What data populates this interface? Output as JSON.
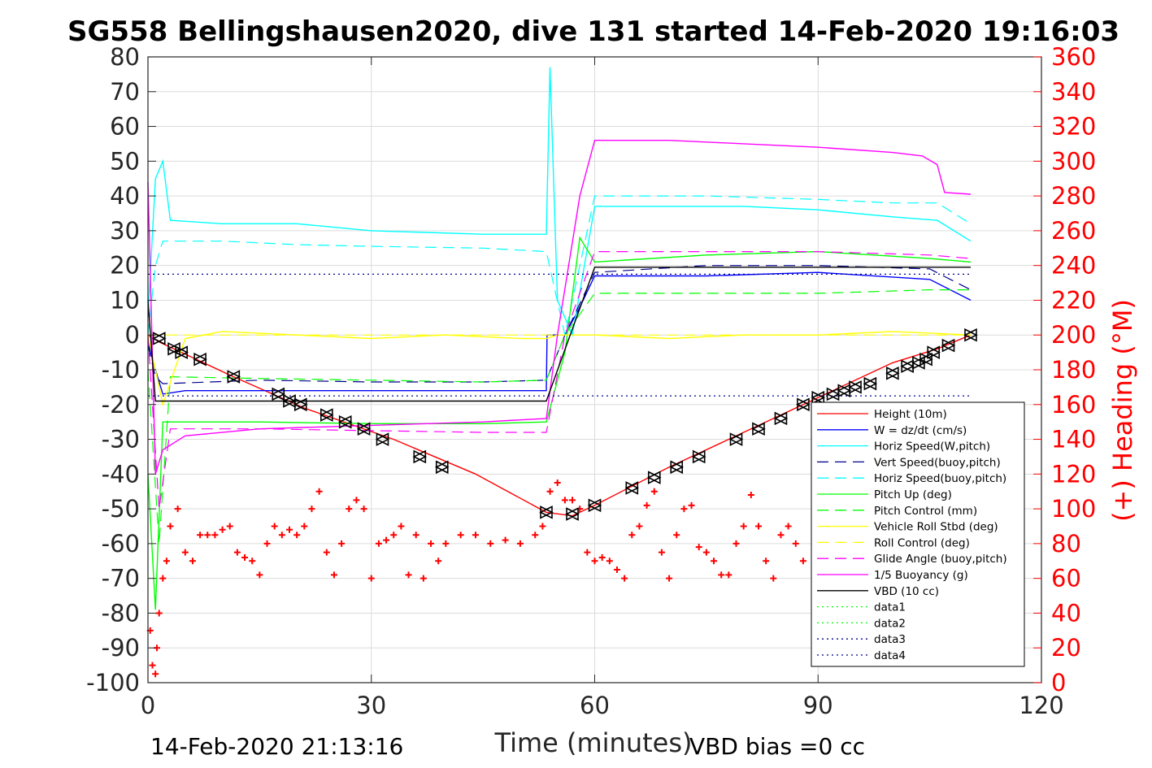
{
  "chart_data": {
    "type": "line",
    "title": "SG558 Bellingshausen2020, dive 131 started 14-Feb-2020 19:16:03",
    "xlabel": "Time (minutes)",
    "ylabel": "",
    "y2label": "(+) Heading (°M)",
    "xlim": [
      0,
      120
    ],
    "ylim": [
      -100,
      80
    ],
    "y2lim": [
      0,
      360
    ],
    "xticks": [
      "0",
      "30",
      "60",
      "90",
      "120"
    ],
    "yticks": [
      "80",
      "70",
      "60",
      "50",
      "40",
      "30",
      "20",
      "10",
      "0",
      "-10",
      "-20",
      "-30",
      "-40",
      "-50",
      "-60",
      "-70",
      "-80",
      "-90",
      "-100"
    ],
    "y2ticks": [
      "360",
      "340",
      "320",
      "300",
      "280",
      "260",
      "240",
      "220",
      "200",
      "180",
      "160",
      "140",
      "120",
      "100",
      "80",
      "60",
      "40",
      "20",
      "0"
    ],
    "grid": true,
    "legend_position": "lower-right inside",
    "footer_left": "14-Feb-2020 21:13:16",
    "footer_right": "VBD bias =0 cc",
    "colors": {
      "red": "#ff0000",
      "blue": "#0000ff",
      "cyan": "#00ffff",
      "navy": "#00008b",
      "green": "#00ff00",
      "yellow": "#ffff00",
      "magenta": "#ff00ff",
      "black": "#000000",
      "darkgreen": "#008000"
    },
    "series": [
      {
        "name": "Height (10m)",
        "color": "#ff0000",
        "style": "solid",
        "x": [
          0,
          1.5,
          11.5,
          21,
          33,
          44,
          53.5,
          57,
          60,
          70,
          80,
          90,
          100,
          106,
          110.5
        ],
        "y": [
          0,
          -2,
          -12,
          -21,
          -30,
          -40,
          -51,
          -52,
          -49,
          -38,
          -28,
          -18,
          -8,
          -4,
          0
        ]
      },
      {
        "name": "W = dz/dt (cm/s)",
        "color": "#0000ff",
        "style": "solid",
        "x": [
          0,
          1,
          2,
          5,
          15,
          30,
          45,
          53.5,
          53.6,
          56,
          58,
          60,
          75,
          90,
          105,
          110.5
        ],
        "y": [
          -2,
          -10,
          -17,
          -16,
          -16,
          -16,
          -16,
          -16,
          0,
          0,
          8,
          17,
          17,
          18,
          16,
          10
        ]
      },
      {
        "name": "Horiz Speed(W,pitch)",
        "color": "#00ffff",
        "style": "solid",
        "x": [
          0,
          1,
          2,
          3,
          10,
          20,
          30,
          45,
          53.5,
          54,
          55,
          57,
          60,
          70,
          80,
          90,
          100,
          106,
          110.5
        ],
        "y": [
          5,
          45,
          50,
          33,
          32,
          32,
          30,
          29,
          29,
          77,
          10,
          0,
          37,
          37,
          37,
          36,
          34,
          33,
          27
        ]
      },
      {
        "name": "Vert Speed(buoy,pitch)",
        "color": "#00008b",
        "style": "dash",
        "x": [
          0,
          1,
          2,
          15,
          30,
          45,
          53.5,
          56,
          60,
          75,
          90,
          105,
          110.5
        ],
        "y": [
          -3,
          -12,
          -14,
          -13,
          -13.5,
          -13.5,
          -13,
          0,
          18,
          20,
          20,
          19,
          13
        ]
      },
      {
        "name": "Horiz Speed(buoy,pitch)",
        "color": "#00ffff",
        "style": "dash",
        "x": [
          0,
          1,
          2,
          10,
          20,
          30,
          45,
          53.5,
          56,
          60,
          75,
          90,
          100,
          106,
          110.5
        ],
        "y": [
          0,
          20,
          27,
          27,
          26,
          25.5,
          25,
          24,
          0,
          40,
          40,
          39,
          38,
          38,
          32
        ]
      },
      {
        "name": "Pitch Up (deg)",
        "color": "#00ff00",
        "style": "solid",
        "x": [
          0,
          1,
          2,
          15,
          30,
          45,
          53.5,
          56,
          58,
          60,
          75,
          90,
          105,
          110.5
        ],
        "y": [
          -40,
          -79,
          -25,
          -25,
          -25.5,
          -25.5,
          -25,
          -5,
          28,
          21,
          23,
          24,
          22,
          21
        ]
      },
      {
        "name": "Pitch Control (mm)",
        "color": "#00ff00",
        "style": "dash",
        "x": [
          0,
          1.5,
          3,
          15,
          30,
          45,
          53.5,
          56,
          60,
          75,
          90,
          105,
          110.5
        ],
        "y": [
          -10,
          -60,
          -12,
          -12.5,
          -13,
          -13.5,
          -13,
          0,
          12,
          12,
          12,
          13,
          13
        ]
      },
      {
        "name": "Vehicle Roll Stbd (deg)",
        "color": "#ffff00",
        "style": "solid",
        "x": [
          0,
          2,
          5,
          10,
          20,
          30,
          40,
          50,
          53.5,
          55,
          60,
          70,
          80,
          90,
          100,
          110.5
        ],
        "y": [
          0,
          -20,
          -1,
          1,
          0,
          -1,
          0,
          -1,
          -1,
          0,
          0,
          -1,
          0,
          0,
          1,
          0
        ]
      },
      {
        "name": "Roll Control (deg)",
        "color": "#ffff00",
        "style": "dash",
        "x": [
          0,
          10,
          20,
          30,
          40,
          50,
          53.5,
          60,
          70,
          80,
          90,
          100,
          110.5
        ],
        "y": [
          0,
          0,
          0,
          0,
          0,
          0,
          0,
          0,
          0,
          0,
          0,
          0,
          0
        ]
      },
      {
        "name": "Glide Angle (buoy,pitch)",
        "color": "#ff00ff",
        "style": "dash",
        "x": [
          0,
          1.5,
          3,
          15,
          30,
          45,
          53.5,
          56,
          60,
          75,
          90,
          105,
          110.5
        ],
        "y": [
          0,
          -50,
          -27,
          -27,
          -27.5,
          -28,
          -28,
          0,
          24,
          24,
          24,
          23,
          22
        ]
      },
      {
        "name": "1/5 Buoyancy (g)",
        "color": "#ff00ff",
        "style": "solid",
        "x": [
          0,
          1,
          2,
          5,
          15,
          30,
          45,
          53.5,
          55,
          58,
          60,
          70,
          80,
          90,
          100,
          104,
          106,
          107,
          110.5
        ],
        "y": [
          44,
          -40,
          -33,
          -29,
          -27,
          -26,
          -25,
          -24,
          0,
          40,
          56,
          56,
          55,
          54,
          52.5,
          51.5,
          49,
          41,
          40.5
        ]
      },
      {
        "name": "VBD (10 cc)",
        "color": "#000000",
        "style": "solid",
        "x": [
          0,
          1,
          2,
          20,
          40,
          53.5,
          60,
          80,
          100,
          110.5
        ],
        "y": [
          10,
          -19,
          -19,
          -19,
          -19,
          -19,
          19.5,
          19.5,
          19.5,
          19.5
        ]
      },
      {
        "name": "data1",
        "color": "#00ff00",
        "style": "dot",
        "x": [],
        "y": []
      },
      {
        "name": "data2",
        "color": "#00ff00",
        "style": "dot",
        "x": [],
        "y": []
      },
      {
        "name": "data3",
        "color": "#00008b",
        "style": "dot",
        "x": [
          0,
          110.5
        ],
        "y": [
          -17.5,
          -17.5
        ]
      },
      {
        "name": "data4",
        "color": "#00008b",
        "style": "dot",
        "x": [
          0,
          110.5
        ],
        "y": [
          17.5,
          17.5
        ]
      }
    ],
    "heading": {
      "name": "(+) Heading",
      "color": "#ff0000",
      "axis": "right",
      "x": [
        0.3,
        0.6,
        1.0,
        1.2,
        1.5,
        2,
        2.5,
        3,
        4,
        5,
        6,
        7,
        8,
        9,
        10,
        11,
        12,
        13,
        14,
        15,
        16,
        17,
        18,
        19,
        20,
        21,
        22,
        23,
        24,
        25,
        26,
        27,
        28,
        29,
        30,
        31,
        32,
        33,
        34,
        35,
        36,
        37,
        38,
        39,
        40,
        42,
        44,
        46,
        48,
        50,
        52,
        53,
        54,
        55,
        56,
        57,
        58,
        59,
        60,
        61,
        62,
        63,
        64,
        65,
        66,
        67,
        68,
        69,
        70,
        71,
        72,
        73,
        74,
        75,
        76,
        77,
        78,
        79,
        80,
        81,
        82,
        83,
        84,
        85,
        86,
        87,
        88
      ],
      "y": [
        30,
        10,
        5,
        20,
        40,
        60,
        70,
        90,
        100,
        75,
        70,
        85,
        85,
        85,
        88,
        90,
        75,
        72,
        70,
        62,
        80,
        90,
        85,
        88,
        85,
        90,
        100,
        110,
        75,
        62,
        80,
        100,
        105,
        100,
        60,
        80,
        82,
        85,
        90,
        62,
        85,
        60,
        80,
        70,
        80,
        85,
        85,
        80,
        82,
        80,
        85,
        90,
        110,
        115,
        105,
        105,
        100,
        75,
        70,
        72,
        70,
        65,
        60,
        85,
        90,
        102,
        110,
        75,
        60,
        85,
        100,
        102,
        78,
        75,
        70,
        62,
        62,
        80,
        90,
        108,
        90,
        70,
        60,
        85,
        90,
        80,
        70
      ]
    },
    "markers": {
      "name": "Height markers",
      "color": "#000000",
      "x": [
        1.5,
        3.5,
        4.5,
        7,
        11.5,
        17.5,
        19,
        20.5,
        24,
        26.5,
        29,
        31.5,
        36.5,
        39.5,
        53.5,
        57,
        60,
        65,
        68,
        71,
        74,
        79,
        82,
        85,
        88,
        90,
        92,
        93.5,
        95,
        97,
        100,
        102,
        103.5,
        104.5,
        105.5,
        107.5,
        110.5
      ],
      "y": [
        -1,
        -4,
        -5,
        -7,
        -12,
        -17,
        -19,
        -20,
        -23,
        -25,
        -27,
        -30,
        -35,
        -38,
        -51,
        -51.5,
        -49,
        -44,
        -41,
        -38,
        -35,
        -30,
        -27,
        -24,
        -20,
        -18,
        -17,
        -16,
        -15,
        -14,
        -11,
        -9,
        -8,
        -7,
        -5,
        -3,
        0
      ]
    }
  }
}
